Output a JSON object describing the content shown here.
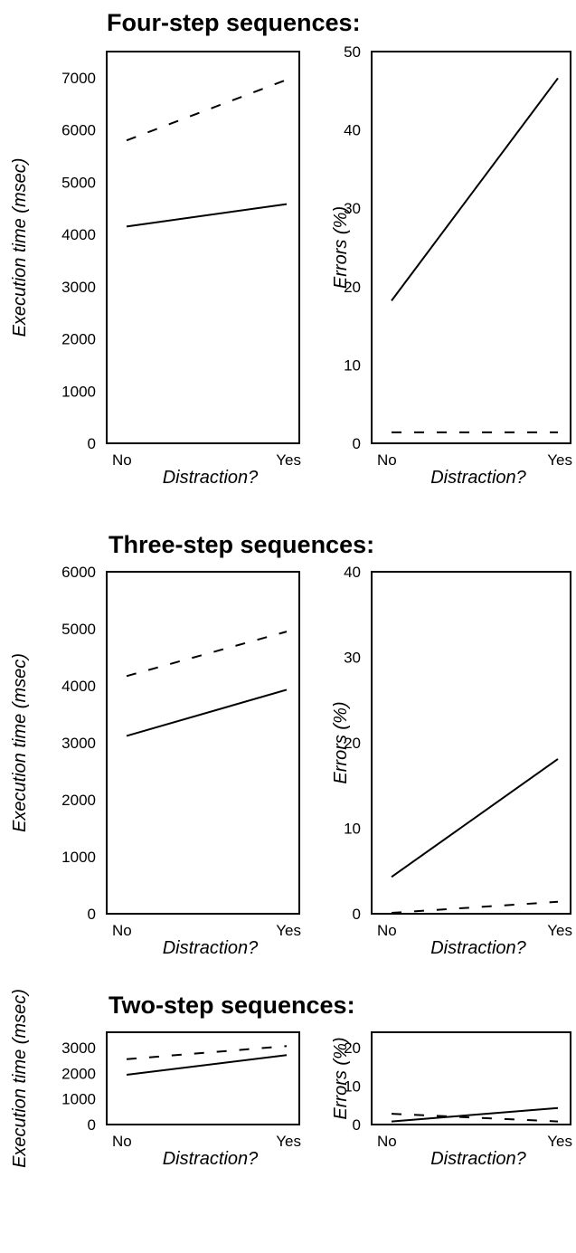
{
  "sections": [
    {
      "title": "Four-step sequences:"
    },
    {
      "title": "Three-step sequences:"
    },
    {
      "title": "Two-step sequences:"
    }
  ],
  "chart_data": [
    {
      "type": "line",
      "section": "Four-step sequences:",
      "xlabel": "Distraction?",
      "ylabel": "Execution time (msec)",
      "categories": [
        "No",
        "Yes"
      ],
      "ylim": [
        0,
        7500
      ],
      "yticks": [
        0,
        1000,
        2000,
        3000,
        4000,
        5000,
        6000,
        7000
      ],
      "series": [
        {
          "style": "solid",
          "values": [
            4150,
            4580
          ]
        },
        {
          "style": "dashed",
          "values": [
            5800,
            6960
          ]
        }
      ]
    },
    {
      "type": "line",
      "section": "Four-step sequences:",
      "xlabel": "Distraction?",
      "ylabel": "Errors (%)",
      "categories": [
        "No",
        "Yes"
      ],
      "ylim": [
        0,
        50
      ],
      "yticks": [
        0,
        10,
        20,
        30,
        40,
        50
      ],
      "series": [
        {
          "style": "solid",
          "values": [
            18.2,
            46.6
          ]
        },
        {
          "style": "dashed",
          "values": [
            1.4,
            1.4
          ]
        }
      ]
    },
    {
      "type": "line",
      "section": "Three-step sequences:",
      "xlabel": "Distraction?",
      "ylabel": "Execution time (msec)",
      "categories": [
        "No",
        "Yes"
      ],
      "ylim": [
        0,
        6000
      ],
      "yticks": [
        0,
        1000,
        2000,
        3000,
        4000,
        5000,
        6000
      ],
      "series": [
        {
          "style": "solid",
          "values": [
            3120,
            3930
          ]
        },
        {
          "style": "dashed",
          "values": [
            4170,
            4950
          ]
        }
      ]
    },
    {
      "type": "line",
      "section": "Three-step sequences:",
      "xlabel": "Distraction?",
      "ylabel": "Errors (%)",
      "categories": [
        "No",
        "Yes"
      ],
      "ylim": [
        0,
        40
      ],
      "yticks": [
        0,
        10,
        20,
        30,
        40
      ],
      "series": [
        {
          "style": "solid",
          "values": [
            4.3,
            18.1
          ]
        },
        {
          "style": "dashed",
          "values": [
            0.1,
            1.4
          ]
        }
      ]
    },
    {
      "type": "line",
      "section": "Two-step sequences:",
      "xlabel": "Distraction?",
      "ylabel": "Execution time (msec)",
      "categories": [
        "No",
        "Yes"
      ],
      "ylim": [
        0,
        3600
      ],
      "yticks": [
        0,
        1000,
        2000,
        3000
      ],
      "series": [
        {
          "style": "solid",
          "values": [
            1940,
            2710
          ]
        },
        {
          "style": "dashed",
          "values": [
            2550,
            3060
          ]
        }
      ]
    },
    {
      "type": "line",
      "section": "Two-step sequences:",
      "xlabel": "Distraction?",
      "ylabel": "Errors (%)",
      "categories": [
        "No",
        "Yes"
      ],
      "ylim": [
        0,
        24
      ],
      "yticks": [
        10,
        20
      ],
      "ytick_zero_label": "0",
      "series": [
        {
          "style": "solid",
          "values": [
            0.8,
            4.3
          ]
        },
        {
          "style": "dashed",
          "values": [
            2.8,
            0.8
          ]
        }
      ]
    }
  ]
}
